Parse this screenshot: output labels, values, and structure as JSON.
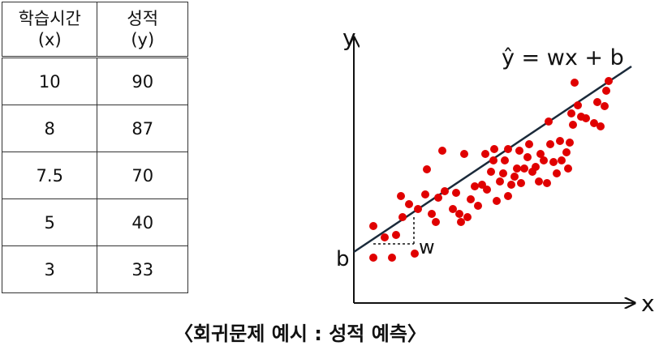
{
  "table": {
    "headers": [
      {
        "line1": "학습시간",
        "line2": "(x)"
      },
      {
        "line1": "성적",
        "line2": "(y)"
      }
    ],
    "rows": [
      [
        "10",
        "90"
      ],
      [
        "8",
        "87"
      ],
      [
        "7.5",
        "70"
      ],
      [
        "5",
        "40"
      ],
      [
        "3",
        "33"
      ]
    ]
  },
  "diagram": {
    "y_axis_label": "y",
    "x_axis_label": "x",
    "equation": "ŷ = wx + b",
    "intercept_label": "b",
    "slope_label": "w",
    "point_color": "#e00000",
    "line_color": "#1a2a3a"
  },
  "caption": "〈회귀문제 예시 : 성적 예측〉"
}
